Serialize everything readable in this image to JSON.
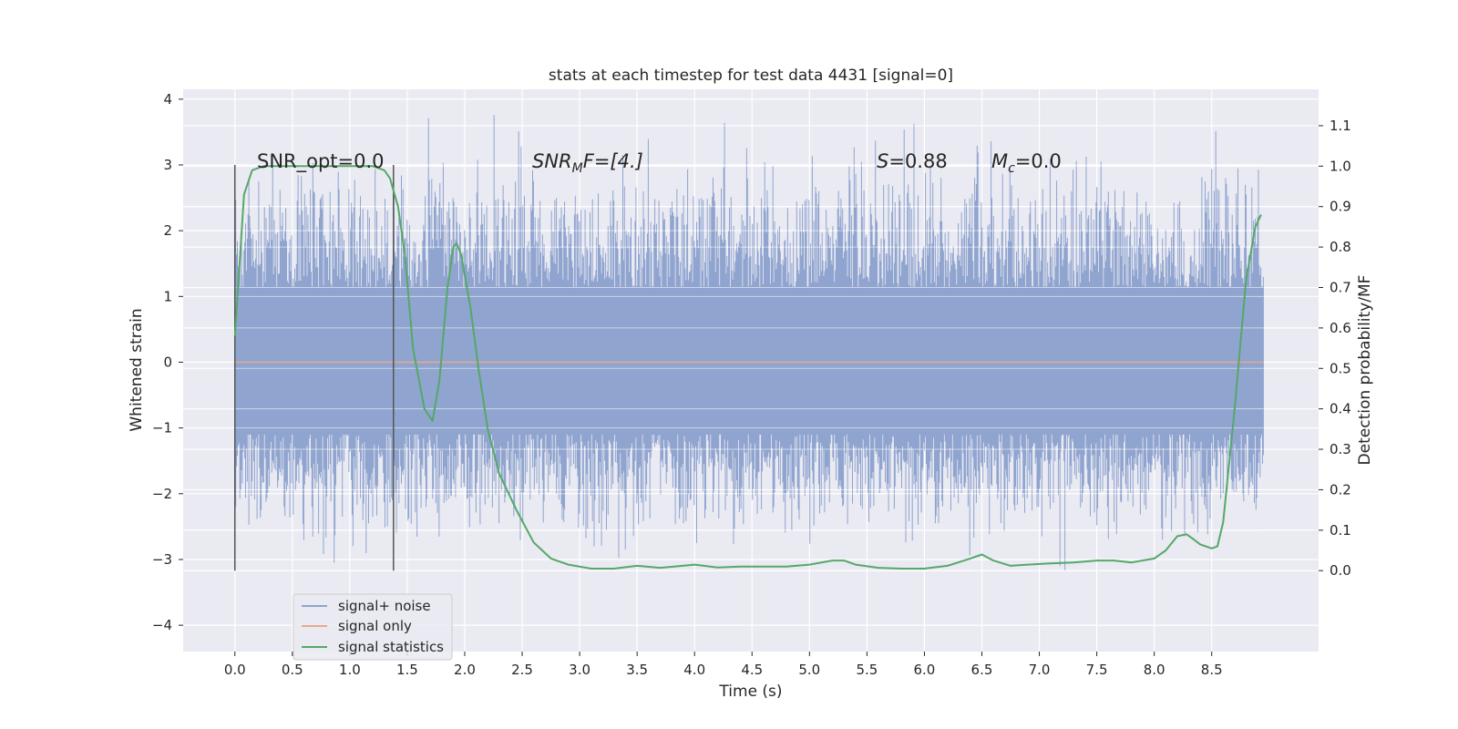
{
  "chart_data": {
    "type": "line",
    "title": "stats at each timestep for test data 4431 [signal=0]",
    "xlabel": "Time (s)",
    "ylabel": "Whitened strain",
    "ylabel_right": "Detection probability/MF",
    "xlim": [
      -0.45,
      9.43
    ],
    "ylim": [
      -4.4,
      4.15
    ],
    "ylim_right": [
      -0.2,
      1.19
    ],
    "xticks": [
      "0.0",
      "0.5",
      "1.0",
      "1.5",
      "2.0",
      "2.5",
      "3.0",
      "3.5",
      "4.0",
      "4.5",
      "5.0",
      "5.5",
      "6.0",
      "6.5",
      "7.0",
      "7.5",
      "8.0",
      "8.5"
    ],
    "yticks": [
      "4",
      "3",
      "2",
      "1",
      "0",
      "−1",
      "−2",
      "−3",
      "−4"
    ],
    "yticks_right": [
      "1.1",
      "1.0",
      "0.9",
      "0.8",
      "0.7",
      "0.6",
      "0.5",
      "0.4",
      "0.3",
      "0.2",
      "0.1",
      "0.0"
    ],
    "grid": true,
    "legend_position": "lower-left",
    "annotations": {
      "snr_opt": "SNR_opt=0.0",
      "snr_mf_main": "SNR",
      "snr_mf_sub": "M",
      "snr_mf_rest": "F=[4.]",
      "s_main": "S",
      "s_rest": "=0.88",
      "mc_main": "M",
      "mc_sub": "c",
      "mc_rest": "=0.0"
    },
    "vertical_markers_x": [
      0.0,
      1.38
    ],
    "noise_x_range": [
      0.0,
      8.95
    ],
    "noise_envelope_y": [
      -3.2,
      3.8
    ],
    "series": [
      {
        "name": "signal+ noise",
        "color": "#8fa4cf",
        "axis": "left",
        "description_values": "dense noise spanning approx -3.2 to 3.8"
      },
      {
        "name": "signal only",
        "color": "#e8a98c",
        "axis": "left",
        "x": [
          0.0,
          8.95
        ],
        "y": [
          0.0,
          0.0
        ]
      },
      {
        "name": "signal statistics",
        "color": "#55a868",
        "axis": "right",
        "x": [
          0.0,
          0.08,
          0.15,
          0.25,
          0.5,
          1.0,
          1.2,
          1.3,
          1.35,
          1.42,
          1.48,
          1.55,
          1.65,
          1.72,
          1.78,
          1.85,
          1.9,
          1.93,
          1.97,
          2.05,
          2.12,
          2.2,
          2.3,
          2.45,
          2.6,
          2.75,
          2.9,
          3.1,
          3.3,
          3.5,
          3.7,
          3.9,
          4.0,
          4.2,
          4.4,
          4.6,
          4.8,
          5.0,
          5.2,
          5.3,
          5.4,
          5.6,
          5.8,
          6.0,
          6.2,
          6.4,
          6.5,
          6.6,
          6.75,
          6.9,
          7.1,
          7.3,
          7.5,
          7.65,
          7.8,
          8.0,
          8.1,
          8.2,
          8.28,
          8.33,
          8.4,
          8.5,
          8.55,
          8.6,
          8.7,
          8.8,
          8.88,
          8.93
        ],
        "y": [
          0.58,
          0.93,
          0.99,
          1.0,
          1.0,
          1.0,
          1.0,
          0.99,
          0.97,
          0.9,
          0.78,
          0.55,
          0.4,
          0.37,
          0.47,
          0.7,
          0.8,
          0.81,
          0.78,
          0.65,
          0.5,
          0.35,
          0.24,
          0.15,
          0.07,
          0.03,
          0.015,
          0.005,
          0.005,
          0.012,
          0.007,
          0.012,
          0.015,
          0.008,
          0.01,
          0.01,
          0.01,
          0.015,
          0.025,
          0.025,
          0.015,
          0.007,
          0.005,
          0.005,
          0.012,
          0.03,
          0.04,
          0.025,
          0.012,
          0.015,
          0.018,
          0.02,
          0.025,
          0.025,
          0.02,
          0.03,
          0.05,
          0.085,
          0.09,
          0.08,
          0.065,
          0.055,
          0.06,
          0.12,
          0.4,
          0.72,
          0.85,
          0.88
        ]
      }
    ]
  }
}
